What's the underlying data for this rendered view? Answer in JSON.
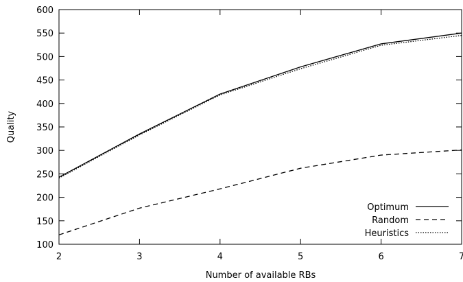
{
  "chart_data": {
    "type": "line",
    "xlabel": "Number of available RBs",
    "ylabel": "Quality",
    "x": [
      2,
      3,
      4,
      5,
      6,
      7
    ],
    "xlim": [
      2,
      7
    ],
    "ylim": [
      100,
      600
    ],
    "xticks": [
      "2",
      "3",
      "4",
      "5",
      "6",
      "7"
    ],
    "yticks": [
      "100",
      "150",
      "200",
      "250",
      "300",
      "350",
      "400",
      "450",
      "500",
      "550",
      "600"
    ],
    "grid": false,
    "legend_position": "bottom-right",
    "series": [
      {
        "name": "Optimum",
        "style": "solid",
        "color": "#000000",
        "values": [
          243,
          335,
          420,
          478,
          527,
          550
        ]
      },
      {
        "name": "Random",
        "style": "dashed",
        "color": "#000000",
        "values": [
          120,
          177,
          218,
          262,
          290,
          301
        ]
      },
      {
        "name": "Heuristics",
        "style": "dotted",
        "color": "#000000",
        "values": [
          241,
          333,
          418,
          474,
          524,
          545
        ]
      }
    ]
  }
}
